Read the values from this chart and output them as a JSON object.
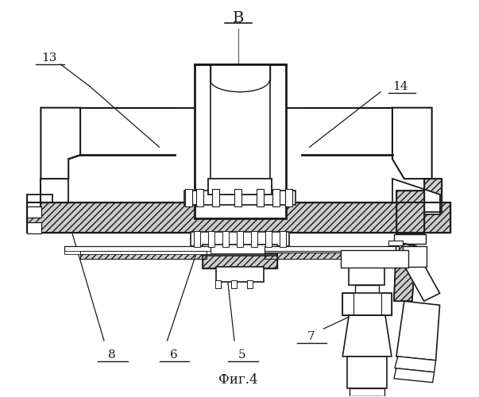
{
  "title": "B",
  "caption": "Фиг.4",
  "bg_color": "#ffffff",
  "line_color": "#1a1a1a"
}
